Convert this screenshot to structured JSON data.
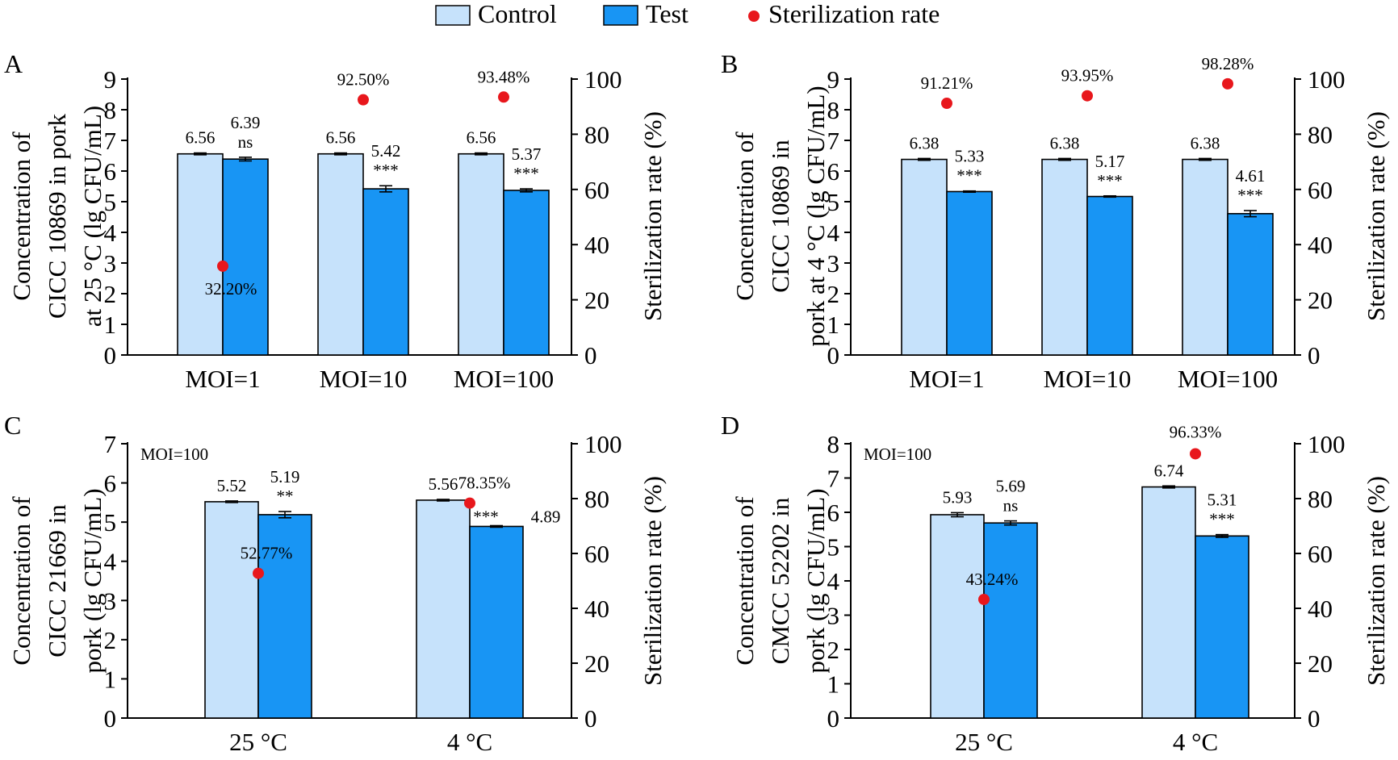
{
  "legend": {
    "items": [
      {
        "key": "control",
        "label": "Control"
      },
      {
        "key": "test",
        "label": "Test"
      },
      {
        "key": "rate",
        "label": "Sterilization rate"
      }
    ]
  },
  "colors": {
    "control": "#c6e2fb",
    "test": "#1895f4",
    "rate": "#e8171c",
    "axis": "#000000"
  },
  "chart_data": [
    {
      "panel": "A",
      "type": "bar",
      "ylabel": [
        "Concentration of",
        "CICC 10869 in pork",
        "at 25 °C (lg CFU/mL)"
      ],
      "y2label": "Sterilization rate (%)",
      "ylim": [
        0,
        9
      ],
      "y2lim": [
        0,
        100
      ],
      "annotation": "",
      "categories": [
        "MOI=1",
        "MOI=10",
        "MOI=100"
      ],
      "series": [
        {
          "name": "Control",
          "values": [
            6.56,
            6.56,
            6.56
          ],
          "errors": [
            0.03,
            0.03,
            0.03
          ],
          "labels": [
            "6.56",
            "6.56",
            "6.56"
          ]
        },
        {
          "name": "Test",
          "values": [
            6.39,
            5.42,
            5.37
          ],
          "errors": [
            0.06,
            0.1,
            0.05
          ],
          "labels": [
            "6.39",
            "5.42",
            "5.37"
          ],
          "significance": [
            "ns",
            "***",
            "***"
          ]
        }
      ],
      "rate": {
        "name": "Sterilization rate",
        "values": [
          32.2,
          92.5,
          93.48
        ],
        "labels": [
          "32.20%",
          "92.50%",
          "93.48%"
        ]
      }
    },
    {
      "panel": "B",
      "type": "bar",
      "ylabel": [
        "Concentration of",
        "CICC 10869 in",
        "pork at 4 °C (lg CFU/mL)"
      ],
      "y2label": "Sterilization rate (%)",
      "ylim": [
        0,
        9
      ],
      "y2lim": [
        0,
        100
      ],
      "annotation": "",
      "categories": [
        "MOI=1",
        "MOI=10",
        "MOI=100"
      ],
      "series": [
        {
          "name": "Control",
          "values": [
            6.38,
            6.38,
            6.38
          ],
          "errors": [
            0.03,
            0.03,
            0.03
          ],
          "labels": [
            "6.38",
            "6.38",
            "6.38"
          ]
        },
        {
          "name": "Test",
          "values": [
            5.33,
            5.17,
            4.61
          ],
          "errors": [
            0.02,
            0.02,
            0.1
          ],
          "labels": [
            "5.33",
            "5.17",
            "4.61"
          ],
          "significance": [
            "***",
            "***",
            "***"
          ]
        }
      ],
      "rate": {
        "name": "Sterilization rate",
        "values": [
          91.21,
          93.95,
          98.28
        ],
        "labels": [
          "91.21%",
          "93.95%",
          "98.28%"
        ]
      }
    },
    {
      "panel": "C",
      "type": "bar",
      "ylabel": [
        "Concentration of",
        "CICC 21669 in",
        "pork (lg CFU/mL)"
      ],
      "y2label": "Sterilization rate (%)",
      "ylim": [
        0,
        7
      ],
      "y2lim": [
        0,
        100
      ],
      "annotation": "MOI=100",
      "categories": [
        "25 °C",
        "4 °C"
      ],
      "series": [
        {
          "name": "Control",
          "values": [
            5.52,
            5.56
          ],
          "errors": [
            0.02,
            0.02
          ],
          "labels": [
            "5.52",
            "5.56"
          ]
        },
        {
          "name": "Test",
          "values": [
            5.19,
            4.89
          ],
          "errors": [
            0.08,
            0.02
          ],
          "labels": [
            "5.19",
            "4.89"
          ],
          "significance": [
            "**",
            "***"
          ]
        }
      ],
      "rate": {
        "name": "Sterilization rate",
        "values": [
          52.77,
          78.35
        ],
        "labels": [
          "52.77%",
          "78.35%"
        ]
      }
    },
    {
      "panel": "D",
      "type": "bar",
      "ylabel": [
        "Concentration of",
        "CMCC 52202 in",
        "pork (lg CFU/mL)"
      ],
      "y2label": "Sterilization rate (%)",
      "ylim": [
        0,
        8
      ],
      "y2lim": [
        0,
        100
      ],
      "annotation": "MOI=100",
      "categories": [
        "25 °C",
        "4 °C"
      ],
      "series": [
        {
          "name": "Control",
          "values": [
            5.93,
            6.74
          ],
          "errors": [
            0.06,
            0.03
          ],
          "labels": [
            "5.93",
            "6.74"
          ]
        },
        {
          "name": "Test",
          "values": [
            5.69,
            5.31
          ],
          "errors": [
            0.06,
            0.04
          ],
          "labels": [
            "5.69",
            "5.31"
          ],
          "significance": [
            "ns",
            "***"
          ]
        }
      ],
      "rate": {
        "name": "Sterilization rate",
        "values": [
          43.24,
          96.33
        ],
        "labels": [
          "43.24%",
          "96.33%"
        ]
      }
    }
  ]
}
